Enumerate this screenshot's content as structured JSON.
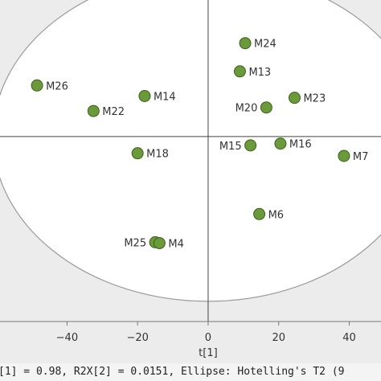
{
  "chart_data": {
    "type": "scatter",
    "xlabel": "t[1]",
    "xlim": [
      -59,
      49
    ],
    "ylim": [
      -2.1,
      1.55
    ],
    "xticks": [
      -40,
      -20,
      0,
      20,
      40
    ],
    "grid": false,
    "ellipse": {
      "x_semi_axis": 61,
      "y_semi_axis": 1.87
    },
    "point_color": "#6a9a3a",
    "points": [
      {
        "label": "M26",
        "x": -48.5,
        "y": 0.58
      },
      {
        "label": "M22",
        "x": -32.5,
        "y": 0.29
      },
      {
        "label": "M14",
        "x": -18.0,
        "y": 0.46
      },
      {
        "label": "M18",
        "x": -20.0,
        "y": -0.19
      },
      {
        "label": "M25",
        "x": -15.0,
        "y": -1.2
      },
      {
        "label": "M4",
        "x": -13.8,
        "y": -1.21
      },
      {
        "label": "M24",
        "x": 10.5,
        "y": 1.06
      },
      {
        "label": "M13",
        "x": 9.0,
        "y": 0.74
      },
      {
        "label": "M20",
        "x": 16.5,
        "y": 0.33
      },
      {
        "label": "M23",
        "x": 24.5,
        "y": 0.44
      },
      {
        "label": "M15",
        "x": 12.0,
        "y": -0.1
      },
      {
        "label": "M16",
        "x": 20.5,
        "y": -0.08
      },
      {
        "label": "M7",
        "x": 38.5,
        "y": -0.22
      },
      {
        "label": "M6",
        "x": 14.5,
        "y": -0.88
      }
    ]
  },
  "footer": {
    "text": "[1] = 0.98, R2X[2] = 0.0151, Ellipse: Hotelling's T2 (9"
  }
}
